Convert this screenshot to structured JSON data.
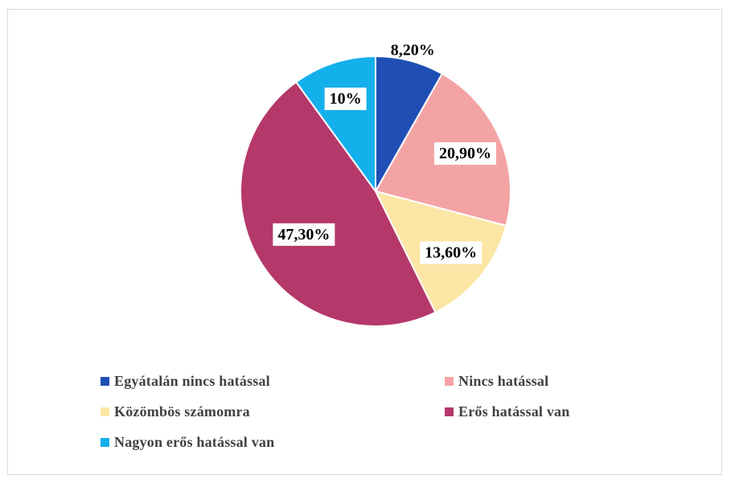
{
  "chart_data": {
    "type": "pie",
    "title": "",
    "start_angle_deg": 0,
    "direction": "clockwise",
    "legend_position": "bottom",
    "slices": [
      {
        "label": "Egyátalán nincs hatással",
        "value": 8.2,
        "display": "8,20%",
        "color": "#1F4FB5"
      },
      {
        "label": "Nincs hatással",
        "value": 20.9,
        "display": "20,90%",
        "color": "#F4A3A5"
      },
      {
        "label": "Közömbös számomra",
        "value": 13.6,
        "display": "13,60%",
        "color": "#FCE6A6"
      },
      {
        "label": "Erős hatással van",
        "value": 47.3,
        "display": "47,30%",
        "color": "#B5386A"
      },
      {
        "label": "Nagyon erős hatással van",
        "value": 10,
        "display": "10%",
        "color": "#14B0EC"
      }
    ]
  }
}
